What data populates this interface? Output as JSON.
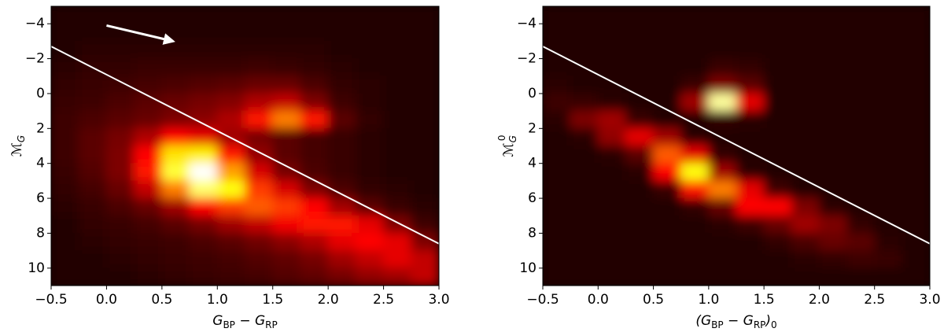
{
  "chart_data": [
    {
      "type": "heatmap",
      "colormap": "hot",
      "xlabel": [
        "G",
        "BP",
        " − G",
        "RP"
      ],
      "ylabel": [
        "ℳ",
        "G"
      ],
      "xlim": [
        -0.5,
        3.0
      ],
      "ylim": [
        -5,
        11
      ],
      "y_inverted": true,
      "xticks": [
        {
          "value": -0.5,
          "label": "−0.5"
        },
        {
          "value": 0,
          "label": "0.0"
        },
        0.5,
        {
          "value": 1,
          "label": "1.0"
        },
        1.5,
        {
          "value": 2,
          "label": "2.0"
        },
        2.5,
        {
          "value": 3,
          "label": "3.0"
        }
      ],
      "yticks": [
        {
          "value": -4,
          "label": "−4"
        },
        {
          "value": -2,
          "label": "−2"
        },
        0,
        2,
        4,
        6,
        8,
        10
      ],
      "x": [
        -0.375,
        -0.125,
        0.125,
        0.375,
        0.625,
        0.875,
        1.125,
        1.375,
        1.625,
        1.875,
        2.125,
        2.375,
        2.625,
        2.875
      ],
      "y": [
        -4.5,
        -3.5,
        -2.5,
        -1.5,
        -0.5,
        0.5,
        1.5,
        2.5,
        3.5,
        4.5,
        5.5,
        6.5,
        7.5,
        8.5,
        9.5,
        10.5
      ],
      "z": [
        [
          0.02,
          0.02,
          0.02,
          0.02,
          0.02,
          0.02,
          0.02,
          0.02,
          0.02,
          0.02,
          0.02,
          0.02,
          0.02,
          0.02
        ],
        [
          0.02,
          0.02,
          0.02,
          0.02,
          0.02,
          0.02,
          0.02,
          0.02,
          0.02,
          0.02,
          0.02,
          0.02,
          0.02,
          0.02
        ],
        [
          0.02,
          0.03,
          0.03,
          0.03,
          0.03,
          0.03,
          0.03,
          0.03,
          0.03,
          0.03,
          0.02,
          0.02,
          0.02,
          0.02
        ],
        [
          0.03,
          0.04,
          0.04,
          0.05,
          0.05,
          0.05,
          0.05,
          0.06,
          0.05,
          0.04,
          0.03,
          0.02,
          0.02,
          0.02
        ],
        [
          0.04,
          0.05,
          0.06,
          0.07,
          0.08,
          0.09,
          0.1,
          0.12,
          0.12,
          0.08,
          0.04,
          0.03,
          0.02,
          0.02
        ],
        [
          0.05,
          0.06,
          0.08,
          0.1,
          0.12,
          0.14,
          0.16,
          0.22,
          0.25,
          0.15,
          0.06,
          0.03,
          0.02,
          0.02
        ],
        [
          0.06,
          0.08,
          0.1,
          0.12,
          0.15,
          0.17,
          0.22,
          0.4,
          0.55,
          0.4,
          0.1,
          0.04,
          0.02,
          0.02
        ],
        [
          0.06,
          0.1,
          0.14,
          0.22,
          0.35,
          0.3,
          0.2,
          0.14,
          0.1,
          0.07,
          0.05,
          0.03,
          0.02,
          0.02
        ],
        [
          0.06,
          0.1,
          0.15,
          0.35,
          0.7,
          0.72,
          0.4,
          0.18,
          0.1,
          0.07,
          0.05,
          0.03,
          0.02,
          0.02
        ],
        [
          0.05,
          0.09,
          0.15,
          0.4,
          0.8,
          1.0,
          0.6,
          0.28,
          0.14,
          0.08,
          0.05,
          0.03,
          0.02,
          0.02
        ],
        [
          0.04,
          0.07,
          0.12,
          0.25,
          0.55,
          0.85,
          0.75,
          0.45,
          0.28,
          0.15,
          0.08,
          0.04,
          0.03,
          0.02
        ],
        [
          0.03,
          0.05,
          0.08,
          0.12,
          0.2,
          0.35,
          0.45,
          0.5,
          0.45,
          0.35,
          0.2,
          0.1,
          0.05,
          0.03
        ],
        [
          0.02,
          0.04,
          0.05,
          0.07,
          0.1,
          0.14,
          0.2,
          0.25,
          0.32,
          0.4,
          0.4,
          0.3,
          0.15,
          0.06
        ],
        [
          0.02,
          0.03,
          0.04,
          0.05,
          0.06,
          0.08,
          0.1,
          0.13,
          0.17,
          0.22,
          0.3,
          0.35,
          0.3,
          0.15
        ],
        [
          0.02,
          0.02,
          0.03,
          0.04,
          0.05,
          0.06,
          0.07,
          0.09,
          0.11,
          0.14,
          0.2,
          0.25,
          0.3,
          0.25
        ],
        [
          0.02,
          0.02,
          0.02,
          0.03,
          0.04,
          0.05,
          0.06,
          0.07,
          0.09,
          0.11,
          0.14,
          0.18,
          0.2,
          0.25
        ]
      ],
      "line": {
        "x": [
          -0.5,
          3.0
        ],
        "y": [
          -2.7,
          8.6
        ],
        "color": "#ffffff"
      },
      "arrow": {
        "x": [
          0,
          0.6
        ],
        "y": [
          -3.9,
          -3.0
        ],
        "color": "#ffffff"
      }
    },
    {
      "type": "heatmap",
      "colormap": "hot",
      "xlabel": [
        "(G",
        "BP",
        " − G",
        "RP",
        ")",
        "0"
      ],
      "ylabel": [
        "ℳ",
        "G",
        "0"
      ],
      "xlim": [
        -0.5,
        3.0
      ],
      "ylim": [
        -5,
        11
      ],
      "y_inverted": true,
      "xticks": [
        {
          "value": -0.5,
          "label": "−0.5"
        },
        {
          "value": 0,
          "label": "0.0"
        },
        0.5,
        {
          "value": 1,
          "label": "1.0"
        },
        1.5,
        {
          "value": 2,
          "label": "2.0"
        },
        2.5,
        {
          "value": 3,
          "label": "3.0"
        }
      ],
      "yticks": [
        {
          "value": -4,
          "label": "−4"
        },
        {
          "value": -2,
          "label": "−2"
        },
        0,
        2,
        4,
        6,
        8,
        10
      ],
      "x": [
        -0.375,
        -0.125,
        0.125,
        0.375,
        0.625,
        0.875,
        1.125,
        1.375,
        1.625,
        1.875,
        2.125,
        2.375,
        2.625,
        2.875
      ],
      "y": [
        -4.5,
        -3.5,
        -2.5,
        -1.5,
        -0.5,
        0.5,
        1.5,
        2.5,
        3.5,
        4.5,
        5.5,
        6.5,
        7.5,
        8.5,
        9.5,
        10.5
      ],
      "z": [
        [
          0.02,
          0.02,
          0.02,
          0.02,
          0.02,
          0.02,
          0.02,
          0.02,
          0.02,
          0.02,
          0.02,
          0.02,
          0.02,
          0.02
        ],
        [
          0.02,
          0.02,
          0.02,
          0.02,
          0.02,
          0.02,
          0.02,
          0.02,
          0.02,
          0.02,
          0.02,
          0.02,
          0.02,
          0.02
        ],
        [
          0.02,
          0.02,
          0.02,
          0.02,
          0.02,
          0.02,
          0.02,
          0.02,
          0.02,
          0.02,
          0.02,
          0.02,
          0.02,
          0.02
        ],
        [
          0.02,
          0.02,
          0.02,
          0.02,
          0.02,
          0.02,
          0.05,
          0.04,
          0.02,
          0.02,
          0.02,
          0.02,
          0.02,
          0.02
        ],
        [
          0.03,
          0.02,
          0.02,
          0.02,
          0.02,
          0.05,
          0.15,
          0.1,
          0.02,
          0.02,
          0.02,
          0.02,
          0.02,
          0.02
        ],
        [
          0.06,
          0.05,
          0.03,
          0.02,
          0.02,
          0.2,
          0.9,
          0.3,
          0.02,
          0.02,
          0.02,
          0.02,
          0.02,
          0.02
        ],
        [
          0.03,
          0.15,
          0.2,
          0.05,
          0.02,
          0.02,
          0.04,
          0.03,
          0.02,
          0.02,
          0.02,
          0.02,
          0.02,
          0.02
        ],
        [
          0.02,
          0.03,
          0.18,
          0.3,
          0.2,
          0.03,
          0.02,
          0.02,
          0.02,
          0.02,
          0.02,
          0.02,
          0.02,
          0.02
        ],
        [
          0.02,
          0.02,
          0.03,
          0.1,
          0.5,
          0.3,
          0.04,
          0.02,
          0.02,
          0.02,
          0.02,
          0.02,
          0.02,
          0.02
        ],
        [
          0.02,
          0.02,
          0.02,
          0.03,
          0.35,
          0.75,
          0.2,
          0.03,
          0.02,
          0.02,
          0.02,
          0.02,
          0.02,
          0.02
        ],
        [
          0.02,
          0.02,
          0.02,
          0.02,
          0.05,
          0.4,
          0.55,
          0.3,
          0.06,
          0.02,
          0.02,
          0.02,
          0.02,
          0.02
        ],
        [
          0.02,
          0.02,
          0.02,
          0.02,
          0.02,
          0.04,
          0.12,
          0.35,
          0.35,
          0.15,
          0.03,
          0.02,
          0.02,
          0.02
        ],
        [
          0.02,
          0.02,
          0.02,
          0.02,
          0.02,
          0.02,
          0.03,
          0.06,
          0.12,
          0.2,
          0.15,
          0.04,
          0.02,
          0.02
        ],
        [
          0.02,
          0.02,
          0.02,
          0.02,
          0.02,
          0.02,
          0.02,
          0.02,
          0.04,
          0.08,
          0.12,
          0.1,
          0.03,
          0.02
        ],
        [
          0.02,
          0.02,
          0.02,
          0.02,
          0.02,
          0.02,
          0.02,
          0.02,
          0.02,
          0.03,
          0.04,
          0.06,
          0.05,
          0.02
        ],
        [
          0.02,
          0.02,
          0.02,
          0.02,
          0.02,
          0.02,
          0.02,
          0.02,
          0.02,
          0.02,
          0.02,
          0.02,
          0.02,
          0.02
        ]
      ],
      "line": {
        "x": [
          -0.5,
          3.0
        ],
        "y": [
          -2.7,
          8.6
        ],
        "color": "#ffffff"
      }
    }
  ]
}
